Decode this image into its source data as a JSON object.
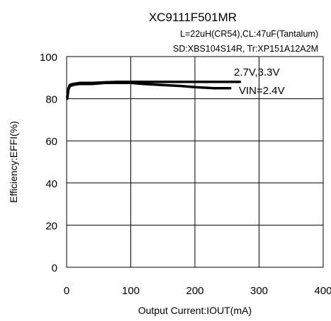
{
  "chart_data": {
    "type": "line",
    "title": "XC9111F501MR",
    "subtitle_lines": [
      "L=22uH(CR54),CL:47uF(Tantalum)",
      "SD:XBS104S14R, Tr:XP151A12A2M"
    ],
    "xlabel": "Output Current:IOUT(mA)",
    "ylabel": "Efficiency:EFFI(%)",
    "xlim": [
      0,
      400
    ],
    "ylim": [
      0,
      100
    ],
    "xticks": [
      0,
      100,
      200,
      300,
      400
    ],
    "yticks": [
      0,
      20,
      40,
      60,
      80,
      100
    ],
    "grid": true,
    "annotations": [
      "2.7V,3.3V",
      "VIN=2.4V"
    ],
    "series": [
      {
        "x": [
          1,
          3,
          5,
          10,
          20,
          40,
          60,
          80,
          100,
          120,
          150,
          180,
          200,
          220,
          250,
          270
        ],
        "y": [
          80,
          85,
          86.5,
          87,
          87.5,
          87.5,
          87.8,
          88,
          88,
          88,
          88,
          88,
          88,
          88,
          88,
          88
        ]
      },
      {
        "x": [
          1,
          3,
          5,
          10,
          20,
          40,
          60,
          80,
          100,
          120,
          150,
          180,
          200,
          230,
          255
        ],
        "y": [
          81,
          84.5,
          86,
          86.5,
          87,
          87,
          87.5,
          87.5,
          87.5,
          87,
          86.5,
          86,
          85.5,
          85,
          85
        ]
      }
    ]
  }
}
